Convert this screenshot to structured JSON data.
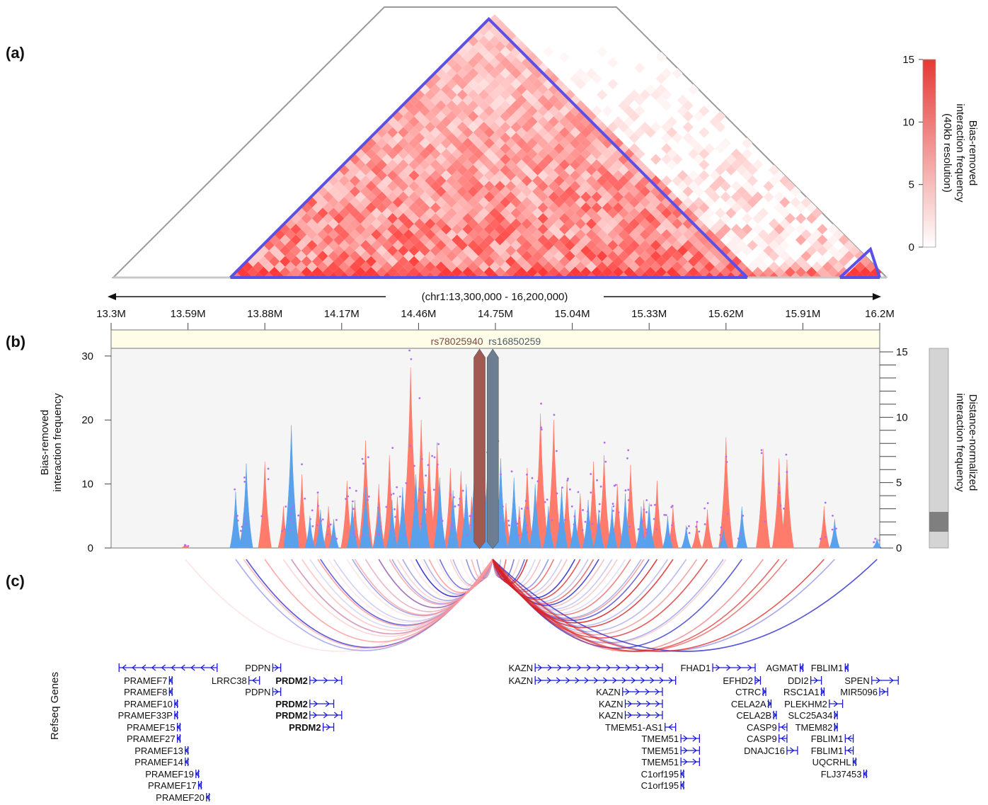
{
  "panels": {
    "a": "(a)",
    "b": "(b)",
    "c": "(c)"
  },
  "region": {
    "label": "(chr1:13,300,000 - 16,200,000)",
    "start_bp": 13300000,
    "end_bp": 16200000
  },
  "genome_axis": {
    "ticks": [
      "13.3M",
      "13.59M",
      "13.88M",
      "14.17M",
      "14.46M",
      "14.75M",
      "15.04M",
      "15.33M",
      "15.62M",
      "15.91M",
      "16.2M"
    ]
  },
  "heatmap": {
    "colorbar": {
      "title_lines": [
        "Bias-removed",
        "interaction frequency",
        "(40kb resolution)"
      ],
      "ticks": [
        "15",
        "10",
        "5",
        "0"
      ],
      "min": 0,
      "max": 15
    },
    "tads": [
      {
        "start_mb": 13.75,
        "end_mb": 15.7
      },
      {
        "start_mb": 16.05,
        "end_mb": 16.2
      }
    ],
    "colors": {
      "high": "#e53935",
      "low": "#ffffff",
      "tad": "#5b50e6",
      "frame": "#9a9a9a"
    }
  },
  "snps": [
    {
      "name": "rs78025940",
      "pos_mb": 14.69,
      "color": "#a05a52",
      "text_color": "#7b4a43"
    },
    {
      "name": "rs16850259",
      "pos_mb": 14.74,
      "color": "#6e7e92",
      "text_color": "#4e5a6a"
    }
  ],
  "chart_data": {
    "type": "area",
    "title": "",
    "xlabel": "",
    "ylabel": "Bias-removed interaction frequency",
    "y2label": "Distance-normalized interaction frequency",
    "xlim": [
      13.3,
      16.2
    ],
    "ylim": [
      0,
      30
    ],
    "y2lim": [
      0,
      15
    ],
    "yticks": [
      "0",
      "10",
      "20",
      "30"
    ],
    "y2ticks": [
      "0",
      "5",
      "10",
      "15"
    ],
    "series": [
      {
        "color": "#ff7b6b",
        "peaks": [
          [
            13.58,
            0.6
          ],
          [
            13.8,
            5.5
          ],
          [
            13.88,
            13.5
          ],
          [
            13.95,
            6.5
          ],
          [
            13.98,
            4.5
          ],
          [
            14.02,
            11.5
          ],
          [
            14.08,
            8.5
          ],
          [
            14.12,
            6.5
          ],
          [
            14.19,
            10.5
          ],
          [
            14.22,
            7.5
          ],
          [
            14.26,
            16.8
          ],
          [
            14.31,
            10.0
          ],
          [
            14.35,
            14.5
          ],
          [
            14.38,
            8.0
          ],
          [
            14.43,
            28.2
          ],
          [
            14.47,
            20.0
          ],
          [
            14.5,
            15.0
          ],
          [
            14.53,
            16.5
          ],
          [
            14.58,
            12.5
          ],
          [
            14.62,
            12.0
          ],
          [
            14.66,
            8.0
          ],
          [
            14.7,
            21.0
          ],
          [
            14.79,
            7.0
          ],
          [
            14.84,
            6.5
          ],
          [
            14.87,
            12.5
          ],
          [
            14.92,
            21.0
          ],
          [
            14.97,
            20.0
          ],
          [
            15.02,
            10.5
          ],
          [
            15.07,
            8.5
          ],
          [
            15.12,
            13.5
          ],
          [
            15.16,
            14.5
          ],
          [
            15.21,
            10.0
          ],
          [
            15.26,
            13.0
          ],
          [
            15.31,
            7.5
          ],
          [
            15.36,
            10.5
          ],
          [
            15.42,
            6.5
          ],
          [
            15.51,
            4.0
          ],
          [
            15.55,
            6.0
          ],
          [
            15.62,
            17.3
          ],
          [
            15.76,
            15.5
          ],
          [
            15.82,
            14.0
          ],
          [
            15.85,
            13.8
          ],
          [
            15.99,
            6.5
          ]
        ]
      },
      {
        "color": "#5aa1ec",
        "peaks": [
          [
            13.77,
            8.8
          ],
          [
            13.81,
            13.2
          ],
          [
            13.98,
            19.2
          ],
          [
            14.05,
            5.0
          ],
          [
            14.09,
            6.0
          ],
          [
            14.14,
            4.5
          ],
          [
            14.21,
            7.0
          ],
          [
            14.26,
            9.5
          ],
          [
            14.31,
            7.0
          ],
          [
            14.36,
            7.5
          ],
          [
            14.4,
            9.5
          ],
          [
            14.45,
            11.5
          ],
          [
            14.48,
            9.5
          ],
          [
            14.54,
            11.0
          ],
          [
            14.59,
            9.0
          ],
          [
            14.64,
            10.0
          ],
          [
            14.68,
            22.5
          ],
          [
            14.73,
            24.0
          ],
          [
            14.77,
            14.0
          ],
          [
            14.82,
            11.0
          ],
          [
            14.86,
            6.5
          ],
          [
            14.9,
            10.0
          ],
          [
            14.95,
            6.5
          ],
          [
            15.0,
            9.5
          ],
          [
            15.05,
            6.0
          ],
          [
            15.1,
            7.5
          ],
          [
            15.14,
            6.0
          ],
          [
            15.19,
            6.5
          ],
          [
            15.24,
            8.5
          ],
          [
            15.3,
            6.5
          ],
          [
            15.33,
            7.0
          ],
          [
            15.4,
            5.0
          ],
          [
            15.47,
            3.5
          ],
          [
            15.61,
            3.0
          ],
          [
            15.68,
            6.5
          ],
          [
            16.03,
            4.5
          ],
          [
            16.19,
            1.5
          ]
        ]
      }
    ]
  },
  "arcs": {
    "anchor_mb": 14.74,
    "left_color": "#2222cc",
    "right_color": "#dd2222"
  },
  "genes": {
    "track_label": "Refseq Genes",
    "items": [
      {
        "name": "",
        "start": 13.33,
        "end": 13.7,
        "strand": "-",
        "y": 943
      },
      {
        "name": "PRAMEF7",
        "start": 13.52,
        "end": 13.53,
        "strand": "-",
        "y": 961
      },
      {
        "name": "PRAMEF8",
        "start": 13.52,
        "end": 13.53,
        "strand": "-",
        "y": 977
      },
      {
        "name": "PRAMEF10",
        "start": 13.54,
        "end": 13.55,
        "strand": "-",
        "y": 994
      },
      {
        "name": "PRAMEF33P",
        "start": 13.54,
        "end": 13.55,
        "strand": "-",
        "y": 1010
      },
      {
        "name": "PRAMEF15",
        "start": 13.55,
        "end": 13.56,
        "strand": "-",
        "y": 1027
      },
      {
        "name": "PRAMEF27",
        "start": 13.55,
        "end": 13.56,
        "strand": "-",
        "y": 1043
      },
      {
        "name": "PRAMEF13",
        "start": 13.58,
        "end": 13.59,
        "strand": "-",
        "y": 1060
      },
      {
        "name": "PRAMEF14",
        "start": 13.58,
        "end": 13.59,
        "strand": "-",
        "y": 1076
      },
      {
        "name": "PRAMEF19",
        "start": 13.62,
        "end": 13.63,
        "strand": "-",
        "y": 1093
      },
      {
        "name": "PRAMEF17",
        "start": 13.63,
        "end": 13.64,
        "strand": "-",
        "y": 1109
      },
      {
        "name": "PRAMEF20",
        "start": 13.66,
        "end": 13.67,
        "strand": "-",
        "y": 1126
      },
      {
        "name": "LRRC38",
        "start": 13.82,
        "end": 13.86,
        "strand": "-",
        "y": 961
      },
      {
        "name": "PDPN",
        "start": 13.91,
        "end": 13.94,
        "strand": "+",
        "y": 943
      },
      {
        "name": "PDPN",
        "start": 13.91,
        "end": 13.94,
        "strand": "+",
        "y": 977
      },
      {
        "name": "PRDM2",
        "start": 14.05,
        "end": 14.17,
        "strand": "+",
        "y": 961,
        "bold": true
      },
      {
        "name": "PRDM2",
        "start": 14.05,
        "end": 14.14,
        "strand": "+",
        "y": 994,
        "bold": true
      },
      {
        "name": "PRDM2",
        "start": 14.05,
        "end": 14.17,
        "strand": "+",
        "y": 1010,
        "bold": true
      },
      {
        "name": "PRDM2",
        "start": 14.1,
        "end": 14.14,
        "strand": "+",
        "y": 1027,
        "bold": true
      },
      {
        "name": "KAZN",
        "start": 14.9,
        "end": 15.38,
        "strand": "+",
        "y": 943
      },
      {
        "name": "KAZN",
        "start": 14.9,
        "end": 15.43,
        "strand": "+",
        "y": 961
      },
      {
        "name": "KAZN",
        "start": 15.23,
        "end": 15.38,
        "strand": "+",
        "y": 977
      },
      {
        "name": "KAZN",
        "start": 15.24,
        "end": 15.38,
        "strand": "+",
        "y": 994
      },
      {
        "name": "KAZN",
        "start": 15.24,
        "end": 15.38,
        "strand": "+",
        "y": 1010
      },
      {
        "name": "TMEM51-AS1",
        "start": 15.39,
        "end": 15.43,
        "strand": "-",
        "y": 1027
      },
      {
        "name": "TMEM51",
        "start": 15.45,
        "end": 15.52,
        "strand": "+",
        "y": 1043
      },
      {
        "name": "TMEM51",
        "start": 15.45,
        "end": 15.52,
        "strand": "+",
        "y": 1060
      },
      {
        "name": "TMEM51",
        "start": 15.45,
        "end": 15.52,
        "strand": "+",
        "y": 1076
      },
      {
        "name": "C1orf195",
        "start": 15.45,
        "end": 15.46,
        "strand": "-",
        "y": 1093
      },
      {
        "name": "C1orf195",
        "start": 15.45,
        "end": 15.46,
        "strand": "-",
        "y": 1109
      },
      {
        "name": "FHAD1",
        "start": 15.57,
        "end": 15.73,
        "strand": "+",
        "y": 943
      },
      {
        "name": "EFHD2",
        "start": 15.73,
        "end": 15.75,
        "strand": "+",
        "y": 961
      },
      {
        "name": "CTRC",
        "start": 15.76,
        "end": 15.77,
        "strand": "+",
        "y": 977
      },
      {
        "name": "CELA2A",
        "start": 15.78,
        "end": 15.79,
        "strand": "+",
        "y": 994
      },
      {
        "name": "CELA2B",
        "start": 15.8,
        "end": 15.81,
        "strand": "+",
        "y": 1010
      },
      {
        "name": "CASP9",
        "start": 15.82,
        "end": 15.85,
        "strand": "-",
        "y": 1027
      },
      {
        "name": "CASP9",
        "start": 15.82,
        "end": 15.85,
        "strand": "-",
        "y": 1043
      },
      {
        "name": "DNAJC16",
        "start": 15.85,
        "end": 15.89,
        "strand": "+",
        "y": 1060
      },
      {
        "name": "AGMAT",
        "start": 15.9,
        "end": 15.91,
        "strand": "-",
        "y": 943
      },
      {
        "name": "DDI2",
        "start": 15.94,
        "end": 15.98,
        "strand": "+",
        "y": 961
      },
      {
        "name": "RSC1A1",
        "start": 15.98,
        "end": 15.99,
        "strand": "+",
        "y": 977
      },
      {
        "name": "PLEKHM2",
        "start": 16.01,
        "end": 16.06,
        "strand": "+",
        "y": 994
      },
      {
        "name": "SLC25A34",
        "start": 16.03,
        "end": 16.04,
        "strand": "+",
        "y": 1010
      },
      {
        "name": "TMEM82",
        "start": 16.03,
        "end": 16.04,
        "strand": "+",
        "y": 1027
      },
      {
        "name": "FBLIM1",
        "start": 16.07,
        "end": 16.08,
        "strand": "-",
        "y": 943
      },
      {
        "name": "FBLIM1",
        "start": 16.07,
        "end": 16.1,
        "strand": "-",
        "y": 1043
      },
      {
        "name": "FBLIM1",
        "start": 16.07,
        "end": 16.1,
        "strand": "-",
        "y": 1060
      },
      {
        "name": "UQCRHL",
        "start": 16.1,
        "end": 16.11,
        "strand": "-",
        "y": 1076
      },
      {
        "name": "FLJ37453",
        "start": 16.14,
        "end": 16.15,
        "strand": "-",
        "y": 1093
      },
      {
        "name": "SPEN",
        "start": 16.17,
        "end": 16.27,
        "strand": "+",
        "y": 961
      },
      {
        "name": "MIR5096",
        "start": 16.2,
        "end": 16.23,
        "strand": "+",
        "y": 977
      }
    ]
  }
}
